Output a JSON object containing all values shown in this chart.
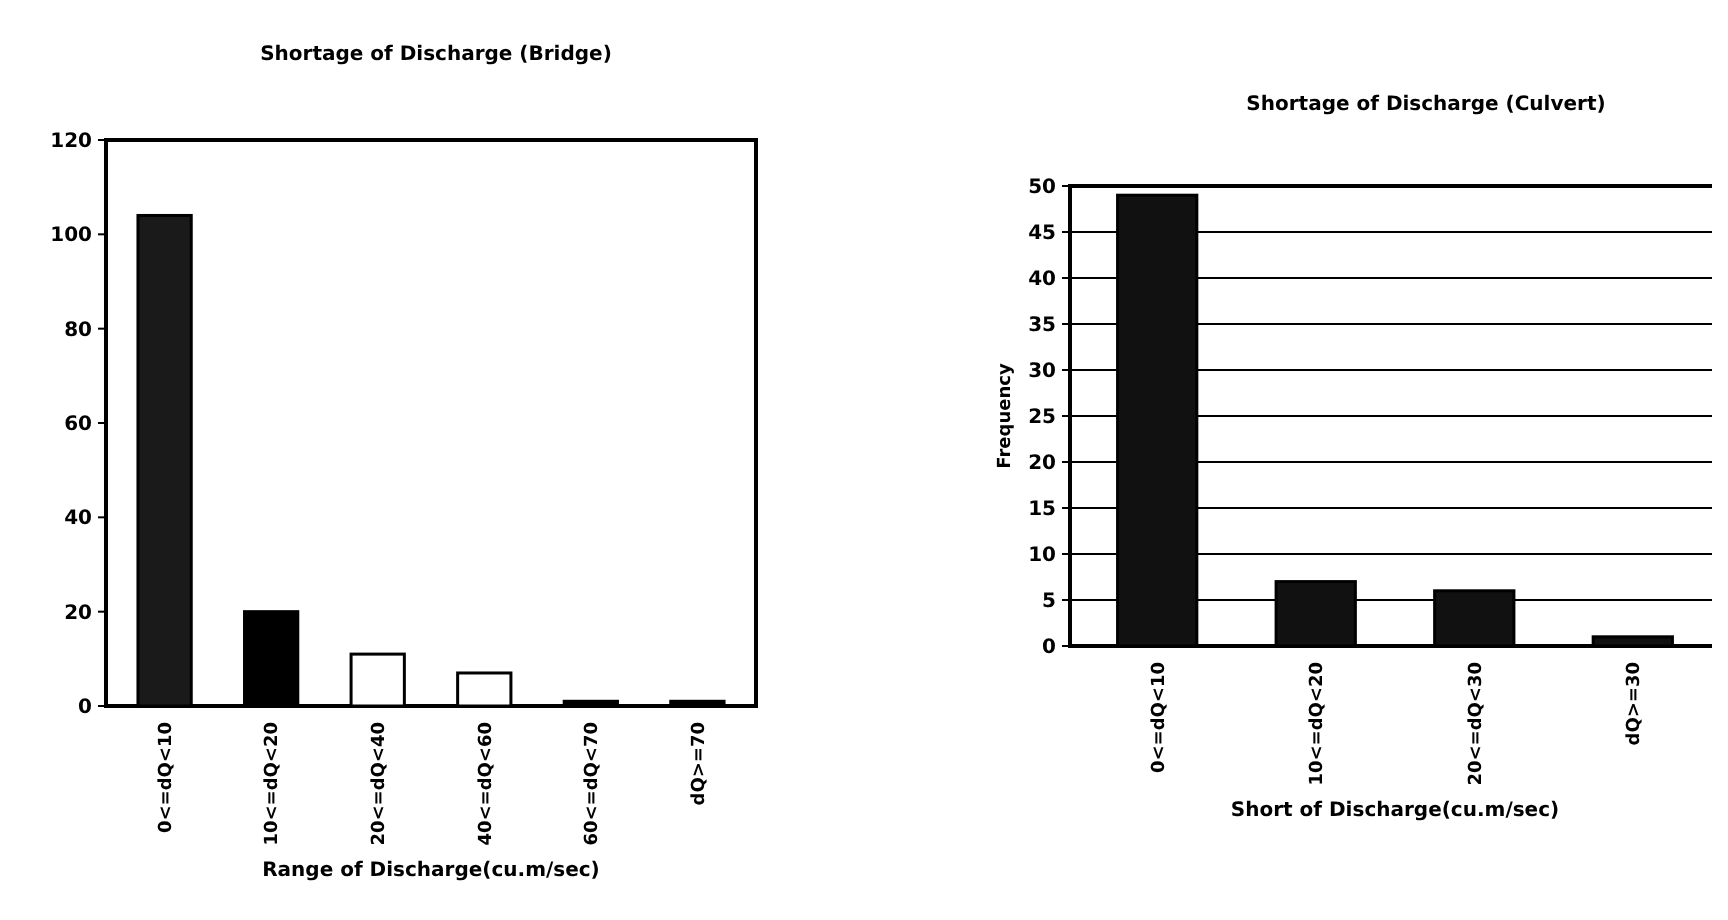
{
  "chart_data": [
    {
      "type": "bar",
      "title": "Shortage of Discharge (Bridge)",
      "xlabel": "Range of Discharge(cu.m/sec)",
      "categories": [
        "0<=dQ<10",
        "10<=dQ<20",
        "20<=dQ<40",
        "40<=dQ<60",
        "60<=dQ<70",
        "dQ>=70"
      ],
      "values": [
        104,
        20,
        11,
        7,
        1,
        1
      ],
      "colors": [
        "#1a1a1a",
        "#000000",
        "#ffffff",
        "#ffffff",
        "#000000",
        "#000000"
      ],
      "ylim": [
        0,
        120
      ],
      "yticks": [
        0,
        20,
        40,
        60,
        80,
        100,
        120
      ],
      "grid": false
    },
    {
      "type": "bar",
      "title": "Shortage of Discharge (Culvert)",
      "xlabel": "Short of Discharge(cu.m/sec)",
      "ylabel": "Frequency",
      "categories": [
        "0<=dQ<10",
        "10<=dQ<20",
        "20<=dQ<30",
        "dQ>=30"
      ],
      "values": [
        49,
        7,
        6,
        1
      ],
      "colors": [
        "#111111",
        "#111111",
        "#111111",
        "#111111"
      ],
      "ylim": [
        0,
        50
      ],
      "yticks": [
        0,
        5,
        10,
        15,
        20,
        25,
        30,
        35,
        40,
        45,
        50
      ],
      "grid": "y"
    }
  ]
}
